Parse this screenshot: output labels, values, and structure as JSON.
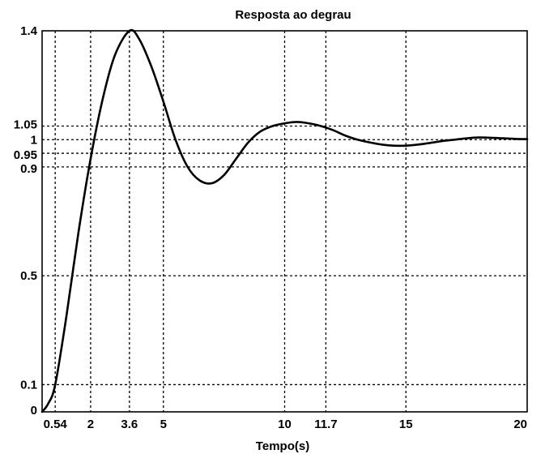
{
  "chart_data": {
    "type": "line",
    "title": "Resposta ao degrau",
    "xlabel": "Tempo(s)",
    "ylabel": "",
    "xlim": [
      0,
      20
    ],
    "ylim": [
      0,
      1.4
    ],
    "grid": true,
    "xticks": [
      0.54,
      2,
      3.6,
      5,
      10,
      11.7,
      15,
      20
    ],
    "xtick_labels": [
      "0.54",
      "2",
      "3.6",
      "5",
      "10",
      "11.7",
      "15",
      "20"
    ],
    "yticks": [
      0,
      0.1,
      0.5,
      0.9,
      0.95,
      1,
      1.05,
      1.4
    ],
    "ytick_labels": [
      "0",
      "0.1",
      "0.5",
      "0.9",
      "0.95",
      "1",
      "1.05",
      "1.4"
    ],
    "series": [
      {
        "color": "#000000",
        "x": [
          0,
          0.25,
          0.54,
          1,
          1.5,
          2,
          2.5,
          3,
          3.6,
          4,
          4.5,
          5,
          5.5,
          6,
          6.5,
          7,
          7.5,
          8,
          8.5,
          9,
          9.5,
          10,
          10.5,
          11,
          11.5,
          12,
          12.5,
          13,
          13.5,
          14,
          14.5,
          15,
          15.5,
          16,
          16.5,
          17,
          17.5,
          18,
          18.5,
          19,
          19.5,
          20
        ],
        "y": [
          0,
          0.03,
          0.1,
          0.35,
          0.66,
          0.93,
          1.15,
          1.31,
          1.4,
          1.37,
          1.27,
          1.14,
          1.0,
          0.9,
          0.85,
          0.84,
          0.87,
          0.93,
          0.99,
          1.03,
          1.05,
          1.06,
          1.065,
          1.06,
          1.05,
          1.035,
          1.015,
          1.0,
          0.99,
          0.982,
          0.978,
          0.978,
          0.982,
          0.988,
          0.995,
          1.0,
          1.005,
          1.008,
          1.007,
          1.005,
          1.003,
          1.002
        ]
      }
    ]
  }
}
